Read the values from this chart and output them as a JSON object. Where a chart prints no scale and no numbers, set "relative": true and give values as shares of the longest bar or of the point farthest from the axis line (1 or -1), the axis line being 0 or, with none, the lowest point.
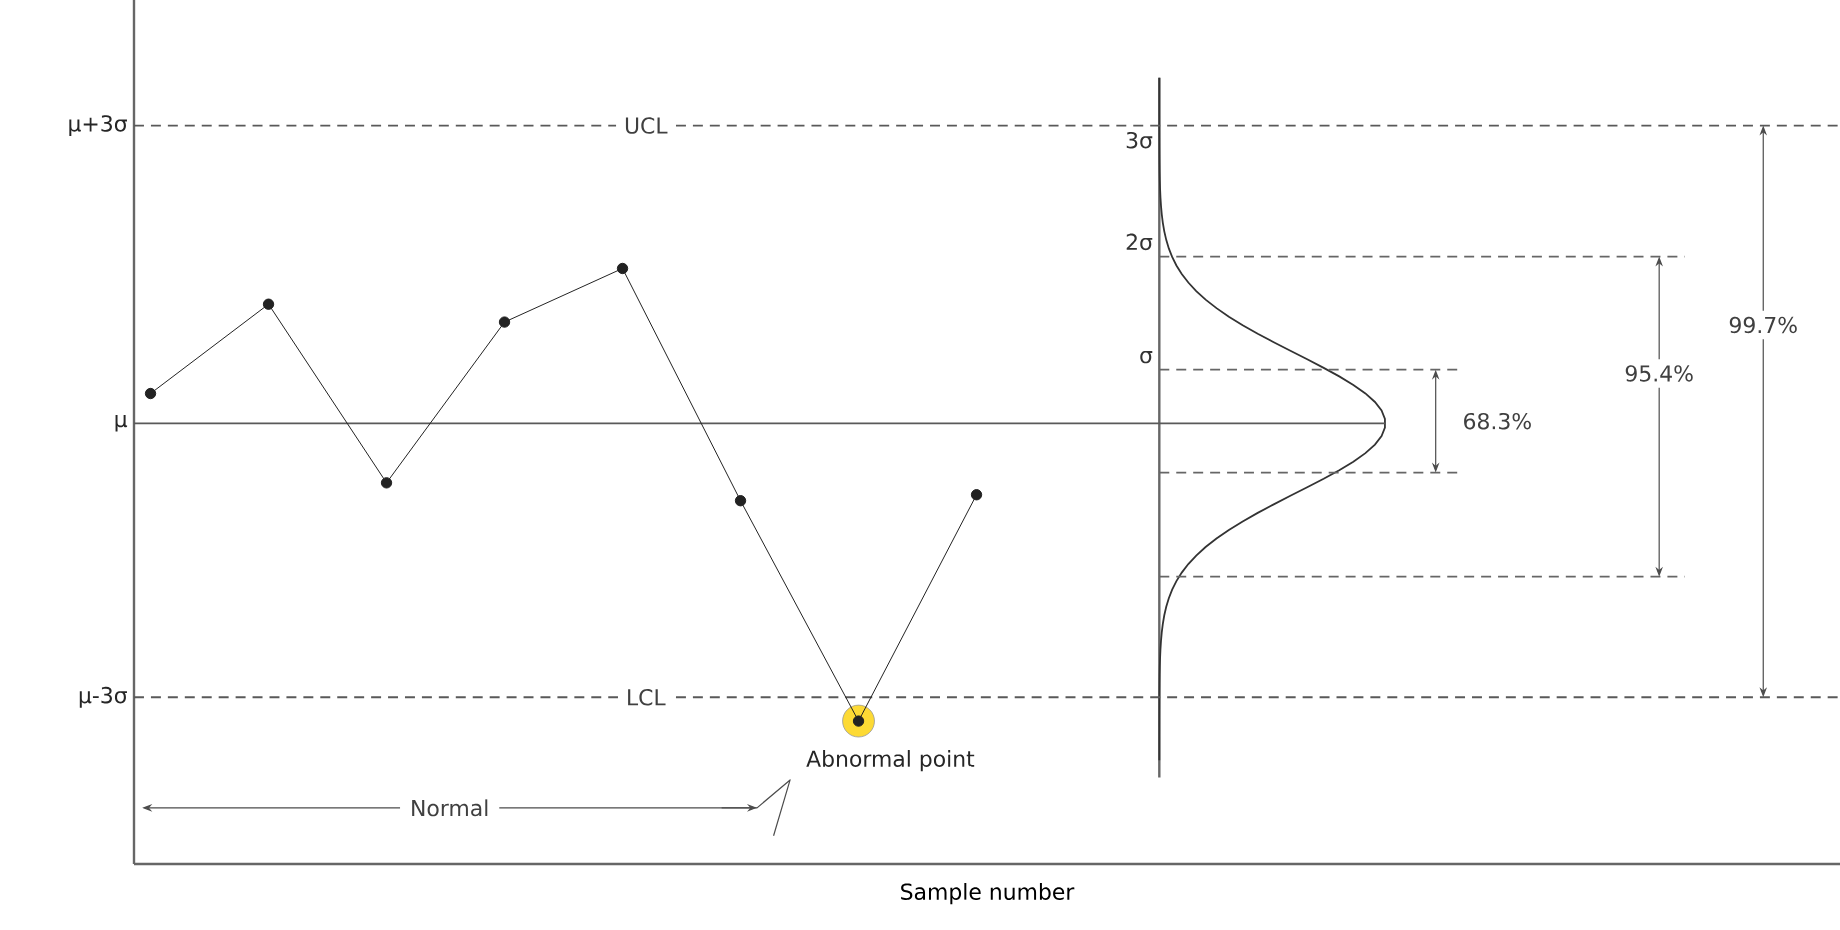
{
  "chart_data": {
    "type": "line",
    "xlabel": "Sample number",
    "relative": true,
    "categories": [
      null,
      null,
      null,
      null,
      null,
      null,
      null,
      null
    ],
    "series": [
      {
        "color": "#222222",
        "values": [
          0.79,
          0.94,
          0.64,
          0.91,
          1,
          0.61,
          0.24,
          0.62
        ]
      }
    ],
    "marker": "circle",
    "ref_lines": [
      {
        "axis": "y",
        "value": 1.24,
        "label": "UCL",
        "line_style": "dashed"
      },
      {
        "axis": "y",
        "value": 0.74,
        "line_style": "solid"
      },
      {
        "axis": "y",
        "value": 0.28,
        "label": "LCL",
        "line_style": "dashed"
      }
    ],
    "annotations": [
      "Abnormal point",
      "3σ",
      "2σ",
      "σ",
      "68.3%",
      "95.4%",
      "99.7%",
      "Normal",
      "μ+3σ",
      "μ",
      "μ-3σ"
    ]
  }
}
